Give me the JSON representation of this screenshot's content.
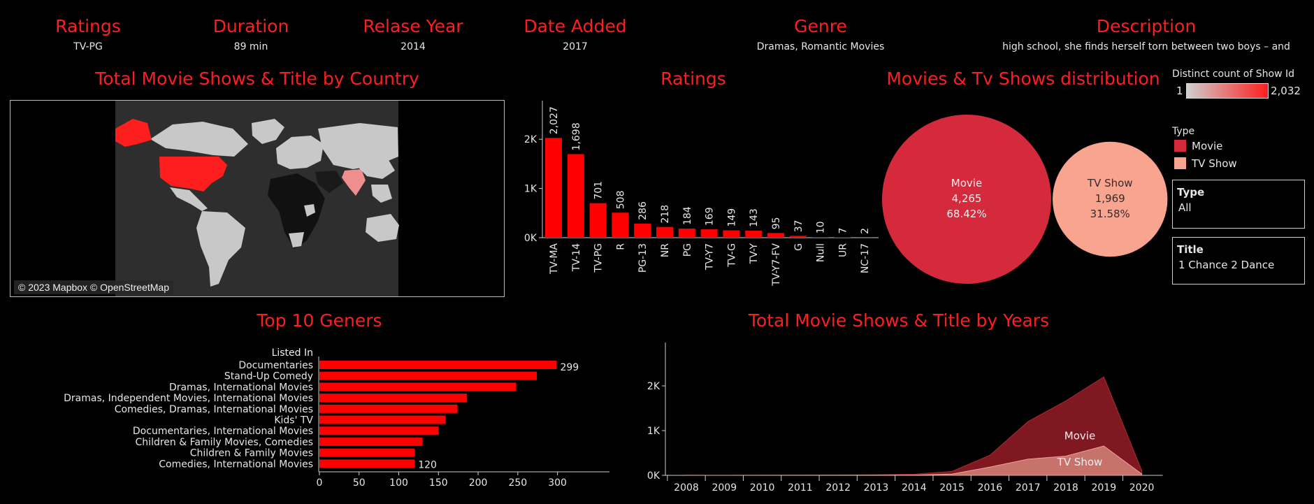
{
  "kpis": [
    {
      "title": "Ratings",
      "value": "TV-PG"
    },
    {
      "title": "Duration",
      "value": "89 min"
    },
    {
      "title": "Relase Year",
      "value": "2014"
    },
    {
      "title": "Date Added",
      "value": "2017"
    },
    {
      "title": "Genre",
      "value": "Dramas, Romantic Movies"
    },
    {
      "title": "Description",
      "value": "high school, she finds herself torn between two boys – and"
    }
  ],
  "titles": {
    "map": "Total Movie Shows & Title by Country",
    "ratings": "Ratings",
    "distribution": "Movies & Tv Shows distribution",
    "genres": "Top 10 Geners",
    "years": "Total Movie Shows & Title by Years"
  },
  "map": {
    "credit": "© 2023 Mapbox © OpenStreetMap",
    "colors": {
      "ocean": "#2e2e2e",
      "land_low": "#c8c8c8",
      "land_high": "#ff1e1e",
      "land_none": "#111111"
    }
  },
  "legend": {
    "count_title": "Distinct count of Show Id",
    "count_min": "1",
    "count_max": "2,032",
    "type_title": "Type",
    "types": [
      {
        "label": "Movie",
        "color": "#d42a3c"
      },
      {
        "label": "TV Show",
        "color": "#f8a48e"
      }
    ]
  },
  "filters": {
    "type": {
      "label": "Type",
      "value": "All"
    },
    "title": {
      "label": "Title",
      "value": "1 Chance 2 Dance"
    }
  },
  "chart_data": [
    {
      "type": "bar",
      "title": "Ratings",
      "categories": [
        "TV-MA",
        "TV-14",
        "TV-PG",
        "R",
        "PG-13",
        "NR",
        "PG",
        "TV-Y7",
        "TV-G",
        "TV-Y",
        "TV-Y7-FV",
        "G",
        "Null",
        "UR",
        "NC-17"
      ],
      "values": [
        2027,
        1698,
        701,
        508,
        286,
        218,
        184,
        169,
        149,
        143,
        95,
        37,
        10,
        7,
        2
      ],
      "value_labels": [
        "2,027",
        "1,698",
        "701",
        "508",
        "286",
        "218",
        "184",
        "169",
        "149",
        "143",
        "95",
        "37",
        "10",
        "7",
        "2"
      ],
      "yticks": [
        "0K",
        "1K",
        "2K"
      ],
      "ylim": [
        0,
        2500
      ],
      "color": "#ff0000"
    },
    {
      "type": "pie",
      "title": "Movies & Tv Shows distribution",
      "slices": [
        {
          "label": "Movie",
          "value": 4265,
          "value_label": "4,265",
          "percent": "68.42%",
          "color": "#d42a3c"
        },
        {
          "label": "TV Show",
          "value": 1969,
          "value_label": "1,969",
          "percent": "31.58%",
          "color": "#f8a48e"
        }
      ]
    },
    {
      "type": "bar",
      "title": "Top 10 Geners",
      "orientation": "horizontal",
      "axis_title": "Listed In",
      "categories": [
        "Documentaries",
        "Stand-Up Comedy",
        "Dramas, International Movies",
        "Dramas, Independent Movies, International Movies",
        "Comedies, Dramas, International Movies",
        "Kids' TV",
        "Documentaries, International Movies",
        "Children & Family Movies, Comedies",
        "Children & Family Movies",
        "Comedies, International Movies"
      ],
      "values": [
        299,
        274,
        248,
        186,
        174,
        159,
        150,
        130,
        120,
        120
      ],
      "end_labels": {
        "first": "299",
        "last": "120"
      },
      "xticks": [
        0,
        50,
        100,
        150,
        200,
        250,
        300
      ],
      "xlim": [
        0,
        340
      ],
      "color": "#ff0000"
    },
    {
      "type": "area",
      "title": "Total Movie Shows & Title by Years",
      "x": [
        2008,
        2009,
        2010,
        2011,
        2012,
        2013,
        2014,
        2015,
        2016,
        2017,
        2018,
        2019,
        2020
      ],
      "series": [
        {
          "name": "Movie",
          "values": [
            1,
            2,
            1,
            5,
            3,
            6,
            19,
            58,
            264,
            839,
            1237,
            1545,
            76
          ],
          "color": "#8b1a24"
        },
        {
          "name": "TV Show",
          "values": [
            1,
            0,
            1,
            1,
            3,
            5,
            6,
            30,
            185,
            361,
            429,
            656,
            29
          ],
          "color": "#d98a80"
        }
      ],
      "yticks": [
        "0K",
        "1K",
        "2K"
      ],
      "ylim": [
        0,
        2500
      ]
    }
  ]
}
